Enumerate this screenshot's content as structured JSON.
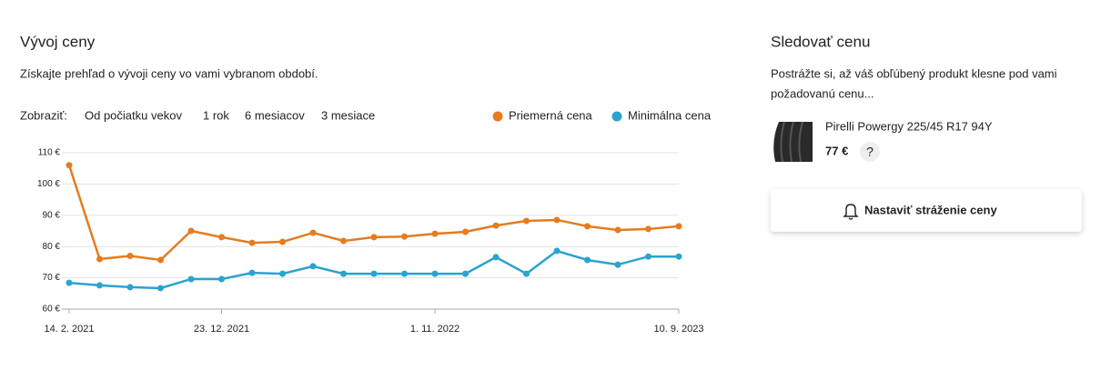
{
  "title": "Vývoj ceny",
  "subtitle": "Získajte prehľad o vývoji ceny vo vami vybranom období.",
  "filter": {
    "label": "Zobraziť:",
    "options": [
      "Od počiatku vekov",
      "1 rok",
      "6 mesiacov",
      "3 mesiace"
    ]
  },
  "chart_data": {
    "type": "line",
    "categories": [
      "14. 2. 2021",
      null,
      null,
      null,
      null,
      "23. 12. 2021",
      null,
      null,
      null,
      null,
      null,
      null,
      "1. 11. 2022",
      null,
      null,
      null,
      null,
      null,
      null,
      null,
      "10. 9. 2023"
    ],
    "series": [
      {
        "name": "Priemerná cena",
        "color": "#e57c1f",
        "values": [
          106,
          76,
          77,
          75.7,
          85,
          83,
          81.2,
          81.5,
          84.4,
          81.8,
          83,
          83.2,
          84.1,
          84.7,
          86.7,
          88.2,
          88.5,
          86.5,
          85.3,
          85.6,
          86.5
        ]
      },
      {
        "name": "Minimálna cena",
        "color": "#2aa3cf",
        "values": [
          68.4,
          67.6,
          67,
          66.7,
          69.6,
          69.6,
          71.6,
          71.3,
          73.7,
          71.3,
          71.3,
          71.3,
          71.3,
          71.3,
          76.6,
          71.3,
          78.6,
          75.7,
          74.2,
          76.8,
          76.8
        ]
      }
    ],
    "ylim": [
      60,
      110
    ],
    "yticks": [
      {
        "value": 60,
        "label": "60 €"
      },
      {
        "value": 70,
        "label": "70 €"
      },
      {
        "value": 80,
        "label": "80 €"
      },
      {
        "value": 90,
        "label": "90 €"
      },
      {
        "value": 100,
        "label": "100 €"
      },
      {
        "value": 110,
        "label": "110 €"
      }
    ],
    "grid": true,
    "legend": "top-right"
  },
  "watch": {
    "title": "Sledovať cenu",
    "text": [
      "Postrážte si, až váš obľúbený produkt klesne pod vami",
      "požadovanú cenu..."
    ],
    "product": "Pirelli Powergy 225/45 R17 94Y",
    "price": "77 €",
    "help": "?",
    "button": "Nastaviť stráženie ceny"
  }
}
